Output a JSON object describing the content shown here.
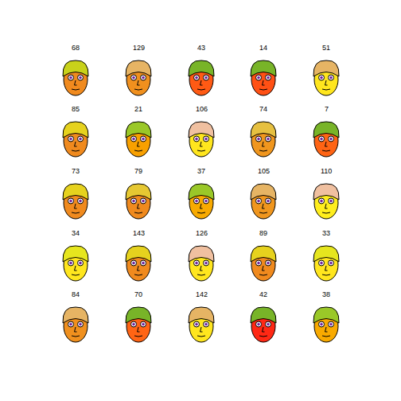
{
  "chart_data": {
    "type": "faces",
    "faces": [
      {
        "label": "68",
        "colors": [
          "#f08a1e",
          "#c8d21a"
        ]
      },
      {
        "label": "129",
        "colors": [
          "#f0901e",
          "#e6b464"
        ]
      },
      {
        "label": "43",
        "colors": [
          "#ff5a14",
          "#78b428"
        ]
      },
      {
        "label": "14",
        "colors": [
          "#ff5014",
          "#78b428"
        ]
      },
      {
        "label": "51",
        "colors": [
          "#ffe61e",
          "#e6b464"
        ]
      },
      {
        "label": "85",
        "colors": [
          "#f08a1e",
          "#e6d21e"
        ]
      },
      {
        "label": "21",
        "colors": [
          "#f8a000",
          "#9ac828"
        ]
      },
      {
        "label": "106",
        "colors": [
          "#ffe61e",
          "#f0c0a0"
        ]
      },
      {
        "label": "74",
        "colors": [
          "#f0961e",
          "#e6c040"
        ]
      },
      {
        "label": "7",
        "colors": [
          "#ff6414",
          "#78b428"
        ]
      },
      {
        "label": "73",
        "colors": [
          "#f08a1e",
          "#e6d21e"
        ]
      },
      {
        "label": "79",
        "colors": [
          "#f08a1e",
          "#e6c832"
        ]
      },
      {
        "label": "37",
        "colors": [
          "#f8aa00",
          "#9ac828"
        ]
      },
      {
        "label": "105",
        "colors": [
          "#f0961e",
          "#e6b464"
        ]
      },
      {
        "label": "110",
        "colors": [
          "#ffee1e",
          "#f0c0a0"
        ]
      },
      {
        "label": "34",
        "colors": [
          "#ffe61e",
          "#e6e61e"
        ]
      },
      {
        "label": "143",
        "colors": [
          "#f08a1e",
          "#e6d21e"
        ]
      },
      {
        "label": "126",
        "colors": [
          "#ffe61e",
          "#f0c0a0"
        ]
      },
      {
        "label": "89",
        "colors": [
          "#f08a1e",
          "#e6d21e"
        ]
      },
      {
        "label": "33",
        "colors": [
          "#ffe61e",
          "#e6e61e"
        ]
      },
      {
        "label": "84",
        "colors": [
          "#f0901e",
          "#e6b464"
        ]
      },
      {
        "label": "70",
        "colors": [
          "#ff6414",
          "#78b428"
        ]
      },
      {
        "label": "142",
        "colors": [
          "#ffe61e",
          "#e6b464"
        ]
      },
      {
        "label": "42",
        "colors": [
          "#ff2814",
          "#78b428"
        ]
      },
      {
        "label": "38",
        "colors": [
          "#f8aa00",
          "#9ac828"
        ]
      }
    ]
  }
}
